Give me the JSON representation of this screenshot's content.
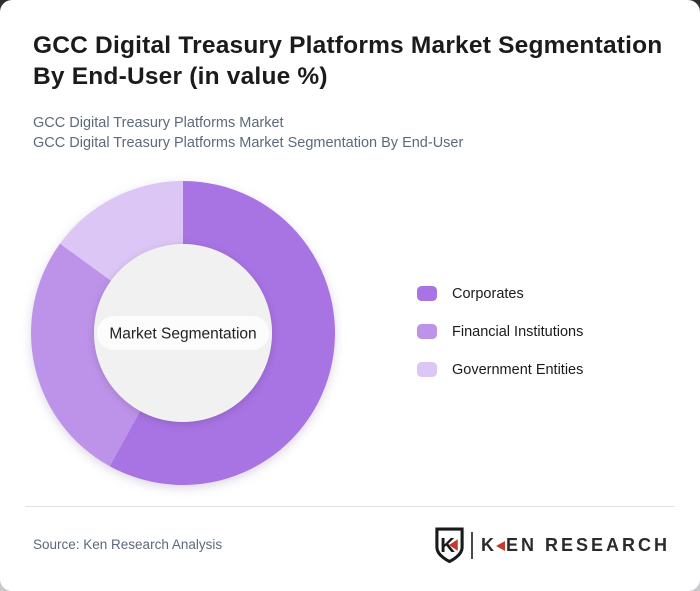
{
  "header": {
    "title_line1": "GCC Digital Treasury Platforms Market Segmentation",
    "title_line2": "By End-User (in value %)",
    "subtitle_line1": "GCC Digital Treasury Platforms Market",
    "subtitle_line2": "GCC Digital Treasury Platforms Market Segmentation By End-User"
  },
  "chart_data": {
    "type": "pie",
    "variant": "donut",
    "title": "GCC Digital Treasury Platforms Market Segmentation By End-User (in value %)",
    "center_label": "Market Segmentation",
    "categories": [
      "Corporates",
      "Financial Institutions",
      "Government Entities"
    ],
    "values": [
      58,
      27,
      15
    ],
    "unit": "value %",
    "colors": [
      "#a873e3",
      "#bd93e9",
      "#dcc6f5"
    ],
    "start_angle_deg": 0,
    "direction": "clockwise",
    "inner_radius_ratio": 0.585,
    "legend_position": "right",
    "inner_circle_color": "#f1f1f2",
    "center_pill_color": "#fcfcfd"
  },
  "legend": {
    "items": [
      {
        "label": "Corporates",
        "color": "#a873e3"
      },
      {
        "label": "Financial Institutions",
        "color": "#bd93e9"
      },
      {
        "label": "Government Entities",
        "color": "#dcc6f5"
      }
    ]
  },
  "footer": {
    "source": "Source: Ken Research Analysis",
    "logo_shield_letter": "K",
    "logo_text_k": "K",
    "logo_text_rest": "EN RESEARCH"
  },
  "colors": {
    "card_bg": "#ffffff",
    "title_text": "#1b1b1d",
    "subtitle_text": "#5d6a7a",
    "divider": "#e3e3e6",
    "logo_red": "#c43a31",
    "logo_dark": "#2b2b2d",
    "bg_top": "#2d2d30",
    "bg_bottom": "#c9c9cd"
  }
}
